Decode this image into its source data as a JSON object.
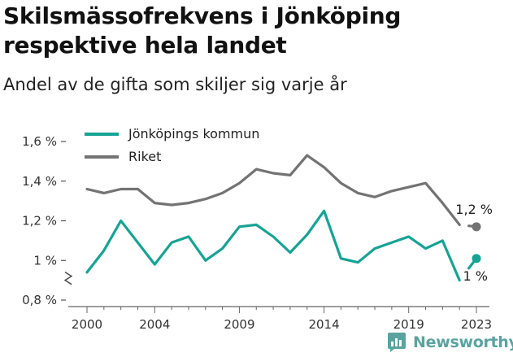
{
  "title": "Skilsmässofrekvens i Jönköping respektive hela landet",
  "subtitle": "Andel av de gifta som skiljer sig varje år",
  "brand": {
    "name": "Newsworthy",
    "icon": "newsworthy-logo-icon",
    "color": "#5aa3a0"
  },
  "chart_data": {
    "type": "line",
    "x": [
      2000,
      2001,
      2002,
      2003,
      2004,
      2005,
      2006,
      2007,
      2008,
      2009,
      2010,
      2011,
      2012,
      2013,
      2014,
      2015,
      2016,
      2017,
      2018,
      2019,
      2020,
      2021,
      2022,
      2023
    ],
    "series": [
      {
        "name": "Jönköpings kommun",
        "color": "#16a394",
        "values": [
          0.94,
          1.05,
          1.2,
          1.09,
          0.98,
          1.09,
          1.12,
          1.0,
          1.06,
          1.17,
          1.18,
          1.12,
          1.04,
          1.13,
          1.25,
          1.01,
          0.99,
          1.06,
          1.09,
          1.12,
          1.06,
          1.1,
          0.9,
          1.01
        ],
        "end_label": "1 %"
      },
      {
        "name": "Riket",
        "color": "#737373",
        "values": [
          1.36,
          1.34,
          1.36,
          1.36,
          1.29,
          1.28,
          1.29,
          1.31,
          1.34,
          1.39,
          1.46,
          1.44,
          1.43,
          1.53,
          1.47,
          1.39,
          1.34,
          1.32,
          1.35,
          1.37,
          1.39,
          1.29,
          1.18,
          1.17
        ],
        "end_label": "1,2 %"
      }
    ],
    "ylim": [
      0.8,
      1.6
    ],
    "y_ticks": [
      {
        "value": 0.8,
        "label": "0,8 %"
      },
      {
        "value": 1.0,
        "label": "1 %"
      },
      {
        "value": 1.2,
        "label": "1,2 %"
      },
      {
        "value": 1.4,
        "label": "1,4 %"
      },
      {
        "value": 1.6,
        "label": "1,6 %"
      }
    ],
    "x_ticks": [
      2000,
      2004,
      2009,
      2014,
      2019,
      2023
    ],
    "y_axis_break": true,
    "grid": false,
    "legend_position": "top-left",
    "last_segment": "gap-then-dot",
    "xlabel": "",
    "ylabel": ""
  }
}
